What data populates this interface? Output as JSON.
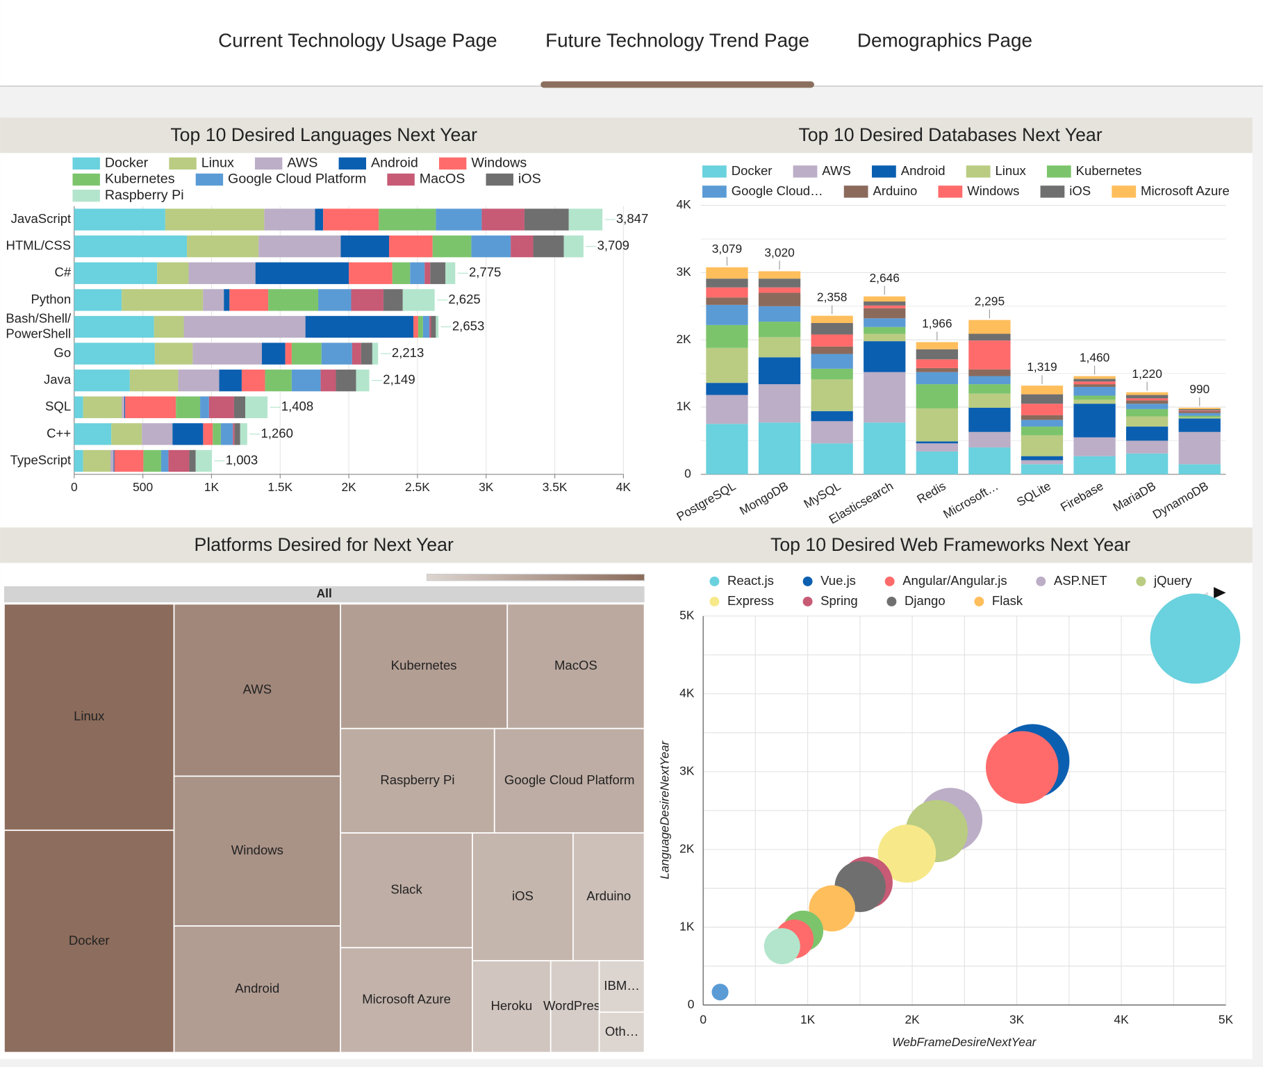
{
  "nav": {
    "tabs": [
      "Current Technology Usage Page",
      "Future Technology Trend Page",
      "Demographics Page"
    ],
    "active": 1
  },
  "chart_data": [
    {
      "type": "bar",
      "orientation": "horizontal",
      "stacked": true,
      "title": "Top 10 Desired Languages Next Year",
      "categories": [
        "JavaScript",
        "HTML/CSS",
        "C#",
        "Python",
        "Bash/Shell/PowerShell",
        "Go",
        "Java",
        "SQL",
        "C++",
        "TypeScript"
      ],
      "series": [
        {
          "name": "Docker",
          "color": "#6ad1de",
          "values": [
            663,
            821,
            604,
            346,
            581,
            587,
            405,
            65,
            270,
            65
          ]
        },
        {
          "name": "Linux",
          "color": "#b9cc82",
          "values": [
            721,
            522,
            229,
            592,
            217,
            276,
            352,
            282,
            223,
            199
          ]
        },
        {
          "name": "AWS",
          "color": "#bcaec6",
          "values": [
            370,
            598,
            487,
            152,
            886,
            504,
            299,
            18,
            223,
            23
          ]
        },
        {
          "name": "Android",
          "color": "#0b5fb0",
          "values": [
            59,
            352,
            680,
            41,
            786,
            170,
            164,
            6,
            223,
            6
          ]
        },
        {
          "name": "Windows",
          "color": "#ff6b6b",
          "values": [
            405,
            317,
            317,
            282,
            35,
            47,
            170,
            370,
            70,
            211
          ]
        },
        {
          "name": "Kubernetes",
          "color": "#7cc46c",
          "values": [
            416,
            282,
            129,
            364,
            35,
            217,
            194,
            176,
            59,
            129
          ]
        },
        {
          "name": "Google Cloud Platform",
          "color": "#5b9bd5",
          "values": [
            334,
            287,
            106,
            240,
            47,
            223,
            211,
            65,
            88,
            53
          ]
        },
        {
          "name": "MacOS",
          "color": "#c75a75",
          "values": [
            311,
            164,
            41,
            235,
            12,
            65,
            111,
            182,
            12,
            152
          ]
        },
        {
          "name": "iOS",
          "color": "#6f6f6f",
          "values": [
            323,
            223,
            111,
            141,
            35,
            82,
            147,
            82,
            41,
            47
          ]
        },
        {
          "name": "Raspberry Pi",
          "color": "#b3e5cc",
          "values": [
            245,
            143,
            71,
            232,
            19,
            42,
            96,
            162,
            51,
            118
          ]
        }
      ],
      "totals": [
        3847,
        3709,
        2775,
        2625,
        2653,
        2213,
        2149,
        1408,
        1260,
        1003
      ],
      "total_labels": [
        "3,847",
        "3,709",
        "2,775",
        "2,625",
        "2,653",
        "2,213",
        "2,149",
        "1,408",
        "1,260",
        "1,003"
      ],
      "xlim": [
        0,
        4000
      ],
      "xticks": [
        0,
        500,
        {
          "value": 1000,
          "label": "1K"
        },
        {
          "value": 1500,
          "label": "1.5K"
        },
        {
          "value": 2000,
          "label": "2K"
        },
        {
          "value": 2500,
          "label": "2.5K"
        },
        {
          "value": 3000,
          "label": "3K"
        },
        {
          "value": 3500,
          "label": "3.5K"
        },
        {
          "value": 4000,
          "label": "4K"
        }
      ],
      "grid": true
    },
    {
      "type": "bar",
      "orientation": "vertical",
      "stacked": true,
      "title": "Top 10 Desired Databases Next Year",
      "categories": [
        "PostgreSQL",
        "MongoDB",
        "MySQL",
        "Elasticsearch",
        "Redis",
        "Microsoft…",
        "SQLite",
        "Firebase",
        "MariaDB",
        "DynamoDB"
      ],
      "series": [
        {
          "name": "Docker",
          "color": "#6ad1de",
          "values": [
            750,
            770,
            460,
            770,
            340,
            400,
            150,
            270,
            310,
            150
          ]
        },
        {
          "name": "AWS",
          "color": "#bcaec6",
          "values": [
            430,
            570,
            330,
            750,
            120,
            230,
            60,
            280,
            190,
            480
          ]
        },
        {
          "name": "Android",
          "color": "#0b5fb0",
          "values": [
            180,
            400,
            150,
            460,
            30,
            360,
            60,
            500,
            210,
            200
          ]
        },
        {
          "name": "Linux",
          "color": "#b9cc82",
          "values": [
            520,
            300,
            470,
            110,
            490,
            210,
            310,
            60,
            150,
            20
          ]
        },
        {
          "name": "Kubernetes",
          "color": "#7cc46c",
          "values": [
            340,
            230,
            160,
            100,
            360,
            140,
            130,
            60,
            110,
            20
          ]
        },
        {
          "name": "Google Cloud…",
          "color": "#5b9bd5",
          "values": [
            300,
            230,
            220,
            130,
            180,
            120,
            100,
            130,
            80,
            40
          ]
        },
        {
          "name": "Arduino",
          "color": "#8b6a5c",
          "values": [
            110,
            200,
            110,
            150,
            60,
            100,
            70,
            40,
            50,
            30
          ]
        },
        {
          "name": "Windows",
          "color": "#ff6b6b",
          "values": [
            150,
            80,
            180,
            40,
            130,
            430,
            170,
            40,
            30,
            10
          ]
        },
        {
          "name": "iOS",
          "color": "#6f6f6f",
          "values": [
            130,
            130,
            170,
            60,
            150,
            100,
            140,
            40,
            50,
            20
          ]
        },
        {
          "name": "Microsoft Azure",
          "color": "#ffbe5c",
          "values": [
            169,
            110,
            108,
            76,
            106,
            205,
            129,
            40,
            40,
            20
          ]
        }
      ],
      "totals": [
        3079,
        3020,
        2358,
        2646,
        1966,
        2295,
        1319,
        1460,
        1220,
        990
      ],
      "total_labels": [
        "3,079",
        "3,020",
        "2,358",
        "2,646",
        "1,966",
        "2,295",
        "1,319",
        "1,460",
        "1,220",
        "990"
      ],
      "ylim": [
        0,
        4000
      ],
      "yticks": [
        0,
        {
          "value": 1000,
          "label": "1K"
        },
        {
          "value": 2000,
          "label": "2K"
        },
        {
          "value": 3000,
          "label": "3K"
        },
        {
          "value": 4000,
          "label": "4K"
        }
      ],
      "grid": true,
      "minor_grid": true
    },
    {
      "type": "treemap",
      "title": "Platforms Desired for Next Year",
      "root": "All",
      "labels": [
        "Linux",
        "Docker",
        "AWS",
        "Windows",
        "Android",
        "Kubernetes",
        "MacOS",
        "Raspberry Pi",
        "Google Cloud Platform",
        "Slack",
        "Microsoft Azure",
        "iOS",
        "Arduino",
        "Heroku",
        "WordPress",
        "IBM…",
        "Oth…"
      ],
      "values": [
        5924,
        5816,
        4416,
        3841,
        3245,
        3200,
        2630,
        2477,
        2412,
        2331,
        2129,
        1981,
        1404,
        1107,
        686,
        358,
        280
      ],
      "color_range": [
        "#ddd5d0",
        "#8b6b5b"
      ]
    },
    {
      "type": "bubble",
      "title": "Top 10 Desired Web Frameworks Next Year",
      "x_label": "WebFrameDesireNextYear",
      "y_label": "LanguageDesireNextYear",
      "series": [
        {
          "name": "React.js",
          "color": "#6ad1de",
          "x": [
            4707
          ],
          "values": [
            4710
          ],
          "sizes": [
            4707
          ]
        },
        {
          "name": "Vue.js",
          "color": "#0b5fb0",
          "x": [
            3151
          ],
          "values": [
            3137
          ],
          "sizes": [
            3151
          ]
        },
        {
          "name": "Angular/Angular.js",
          "color": "#ff6b6b",
          "x": [
            3051
          ],
          "values": [
            3054
          ],
          "sizes": [
            3051
          ]
        },
        {
          "name": "ASP.NET",
          "color": "#bcaec6",
          "x": [
            2365
          ],
          "values": [
            2381
          ],
          "sizes": [
            2365
          ]
        },
        {
          "name": "jQuery",
          "color": "#b9cc82",
          "x": [
            2234
          ],
          "values": [
            2236
          ],
          "sizes": [
            2234
          ]
        },
        {
          "name": "Express",
          "color": "#f7e98a",
          "x": [
            1949
          ],
          "values": [
            1946
          ],
          "sizes": [
            1949
          ]
        },
        {
          "name": "Spring",
          "color": "#c75a75",
          "x": [
            1564
          ],
          "values": [
            1573
          ],
          "sizes": [
            1564
          ]
        },
        {
          "name": "Django",
          "color": "#6f6f6f",
          "x": [
            1502
          ],
          "values": [
            1522
          ],
          "sizes": [
            1502
          ]
        },
        {
          "name": "Flask",
          "color": "#ffbe5c",
          "x": [
            1233
          ],
          "values": [
            1242
          ],
          "sizes": [
            1233
          ]
        },
        {
          "color": "#7cc46c",
          "x": [
            955
          ],
          "values": [
            952
          ],
          "sizes": [
            955
          ]
        },
        {
          "color": "#ff6b6b",
          "x": [
            871
          ],
          "values": [
            849
          ],
          "sizes": [
            871
          ]
        },
        {
          "color": "#b3e5cc",
          "x": [
            755
          ],
          "values": [
            756
          ],
          "sizes": [
            755
          ]
        },
        {
          "color": "#5b9bd5",
          "x": [
            162
          ],
          "values": [
            166
          ],
          "sizes": [
            162
          ]
        }
      ],
      "xlim": [
        0,
        5000
      ],
      "xticks": [
        0,
        {
          "value": 1000,
          "label": "1K"
        },
        {
          "value": 2000,
          "label": "2K"
        },
        {
          "value": 3000,
          "label": "3K"
        },
        {
          "value": 4000,
          "label": "4K"
        },
        {
          "value": 5000,
          "label": "5K"
        }
      ],
      "ylim": [
        0,
        5000
      ],
      "yticks": [
        0,
        {
          "value": 1000,
          "label": "1K"
        },
        {
          "value": 2000,
          "label": "2K"
        },
        {
          "value": 3000,
          "label": "3K"
        },
        {
          "value": 4000,
          "label": "4K"
        },
        {
          "value": 5000,
          "label": "5K"
        }
      ],
      "grid": true,
      "minor_grid": true
    }
  ]
}
